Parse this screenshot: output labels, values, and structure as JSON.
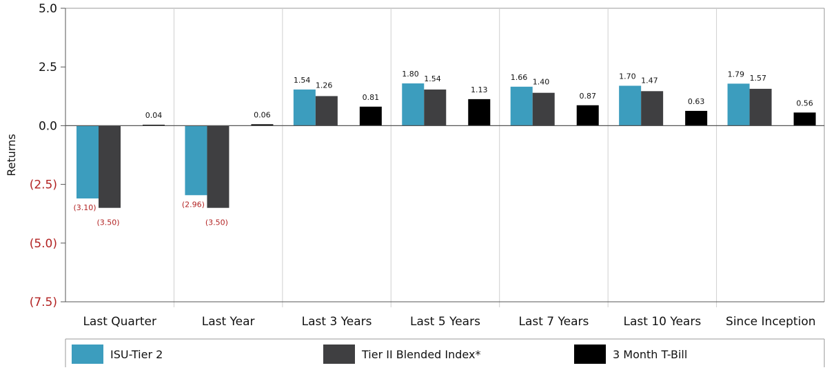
{
  "chart_data": {
    "type": "bar",
    "ylabel": "Returns",
    "ylim": [
      -7.5,
      5.0
    ],
    "yticks": [
      {
        "value": 5.0,
        "label": "5.0"
      },
      {
        "value": 2.5,
        "label": "2.5"
      },
      {
        "value": 0.0,
        "label": "0.0"
      },
      {
        "value": -2.5,
        "label": "(2.5)"
      },
      {
        "value": -5.0,
        "label": "(5.0)"
      },
      {
        "value": -7.5,
        "label": "(7.5)"
      }
    ],
    "categories": [
      "Last Quarter",
      "Last Year",
      "Last 3 Years",
      "Last 5 Years",
      "Last 7 Years",
      "Last 10 Years",
      "Since Inception"
    ],
    "series": [
      {
        "name": "ISU-Tier 2",
        "color": "#3c9dbe",
        "values": [
          -3.1,
          -2.96,
          1.54,
          1.8,
          1.66,
          1.7,
          1.79
        ],
        "labels": [
          "(3.10)",
          "(2.96)",
          "1.54",
          "1.80",
          "1.66",
          "1.70",
          "1.79"
        ]
      },
      {
        "name": "Tier II Blended Index*",
        "color": "#3f3f41",
        "values": [
          -3.5,
          -3.5,
          1.26,
          1.54,
          1.4,
          1.47,
          1.57
        ],
        "labels": [
          "(3.50)",
          "(3.50)",
          "1.26",
          "1.54",
          "1.40",
          "1.47",
          "1.57"
        ]
      },
      {
        "name": "3 Month T-Bill",
        "color": "#000000",
        "values": [
          0.04,
          0.06,
          0.81,
          1.13,
          0.87,
          0.63,
          0.56
        ],
        "labels": [
          "0.04",
          "0.06",
          "0.81",
          "1.13",
          "0.87",
          "0.63",
          "0.56"
        ]
      }
    ],
    "negative_color": "#b22222",
    "grid": "vertical category separators",
    "legend_position": "bottom"
  }
}
